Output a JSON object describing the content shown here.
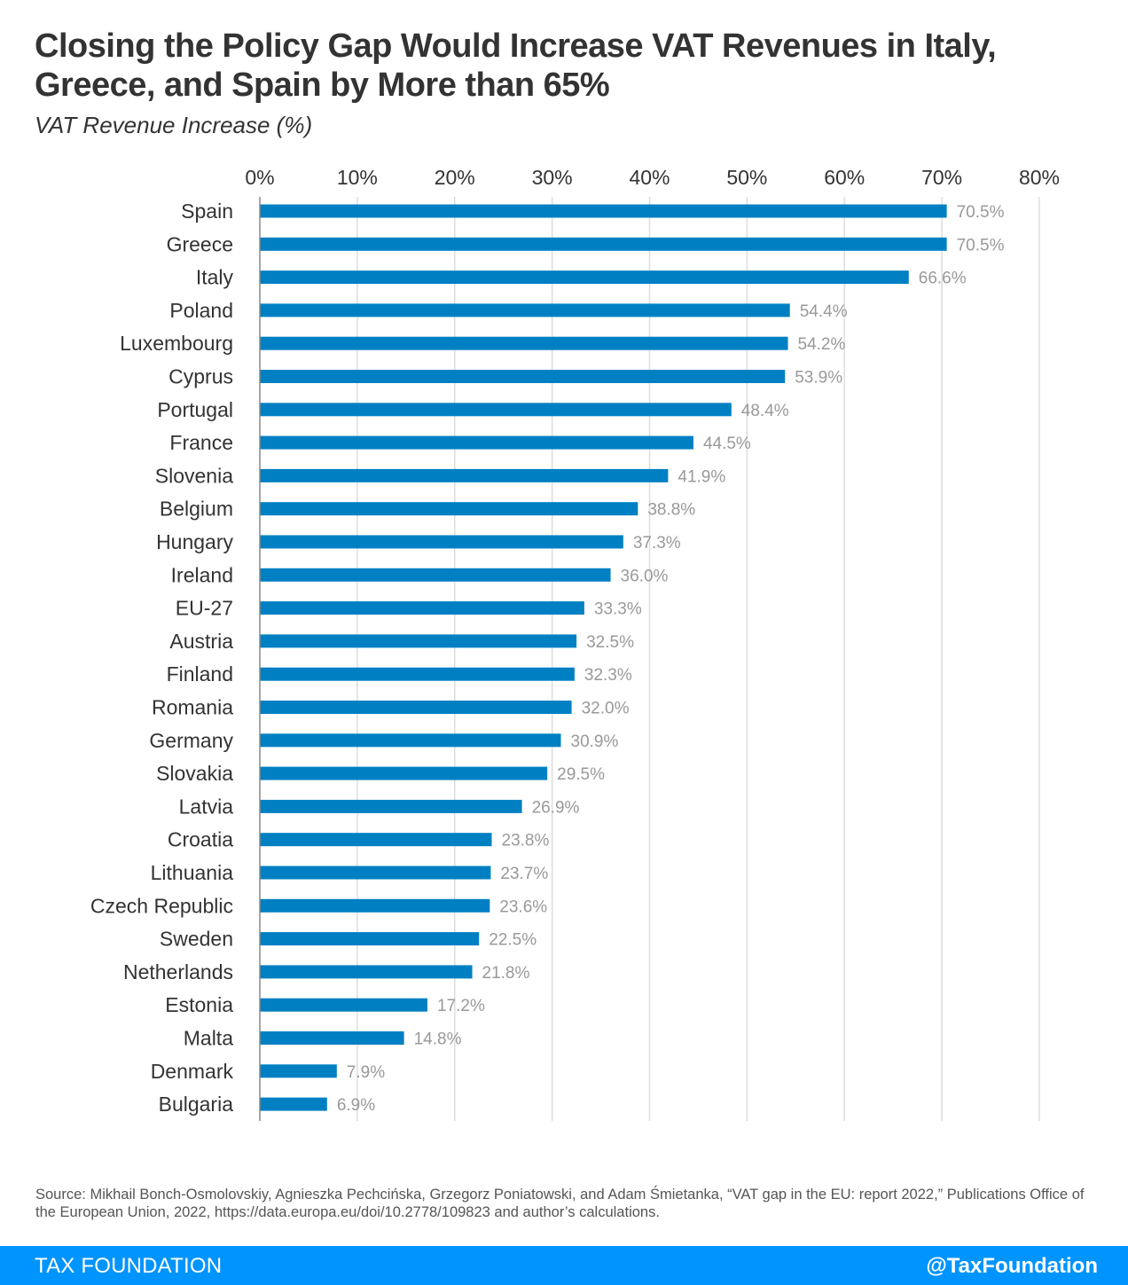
{
  "header": {
    "title": "Closing the Policy Gap Would Increase VAT Revenues in Italy, Greece, and Spain by More than 65%",
    "subtitle": "VAT Revenue Increase (%)"
  },
  "chart_data": {
    "type": "bar",
    "orientation": "horizontal",
    "title": "Closing the Policy Gap Would Increase VAT Revenues in Italy, Greece, and Spain by More than 65%",
    "subtitle": "VAT Revenue Increase (%)",
    "categories": [
      "Spain",
      "Greece",
      "Italy",
      "Poland",
      "Luxembourg",
      "Cyprus",
      "Portugal",
      "France",
      "Slovenia",
      "Belgium",
      "Hungary",
      "Ireland",
      "EU-27",
      "Austria",
      "Finland",
      "Romania",
      "Germany",
      "Slovakia",
      "Latvia",
      "Croatia",
      "Lithuania",
      "Czech Republic",
      "Sweden",
      "Netherlands",
      "Estonia",
      "Malta",
      "Denmark",
      "Bulgaria"
    ],
    "values": [
      70.5,
      70.5,
      66.6,
      54.4,
      54.2,
      53.9,
      48.4,
      44.5,
      41.9,
      38.8,
      37.3,
      36.0,
      33.3,
      32.5,
      32.3,
      32.0,
      30.9,
      29.5,
      26.9,
      23.8,
      23.7,
      23.6,
      22.5,
      21.8,
      17.2,
      14.8,
      7.9,
      6.9
    ],
    "value_labels": [
      "70.5%",
      "70.5%",
      "66.6%",
      "54.4%",
      "54.2%",
      "53.9%",
      "48.4%",
      "44.5%",
      "41.9%",
      "38.8%",
      "37.3%",
      "36.0%",
      "33.3%",
      "32.5%",
      "32.3%",
      "32.0%",
      "30.9%",
      "29.5%",
      "26.9%",
      "23.8%",
      "23.7%",
      "23.6%",
      "22.5%",
      "21.8%",
      "17.2%",
      "14.8%",
      "7.9%",
      "6.9%"
    ],
    "x_ticks": [
      0,
      10,
      20,
      30,
      40,
      50,
      60,
      70,
      80
    ],
    "x_tick_labels": [
      "0%",
      "10%",
      "20%",
      "30%",
      "40%",
      "50%",
      "60%",
      "70%",
      "80%"
    ],
    "xlim": [
      0,
      80
    ],
    "x_axis_position": "top",
    "grid": true,
    "bar_color": "#0080c3",
    "label_color": "#999999"
  },
  "source": "Source: Mikhail Bonch-Osmolovskiy, Agnieszka Pechcińska, Grzegorz Poniatowski, and Adam Śmietanka, “VAT gap in the EU: report 2022,” Publications Office of the European Union, 2022, https://data.europa.eu/doi/10.2778/109823 and author’s calculations.",
  "footer": {
    "brand": "TAX FOUNDATION",
    "handle": "@TaxFoundation",
    "background_color": "#0094ff"
  }
}
